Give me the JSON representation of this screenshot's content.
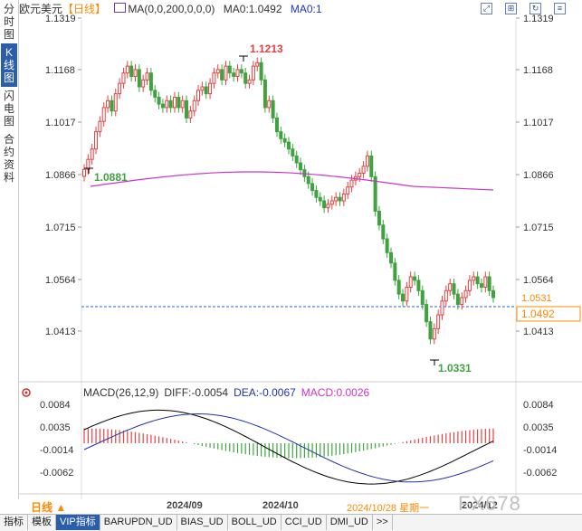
{
  "sidebar": {
    "items": [
      {
        "label": "分时图",
        "active": false
      },
      {
        "label": "K线图",
        "active": true
      },
      {
        "label": "闪电图",
        "active": false
      },
      {
        "label": "合约资料",
        "active": false
      }
    ]
  },
  "header": {
    "symbol": "欧元美元",
    "period": "【日线】",
    "ma_label": "MA(0,0,200,0,0,0)",
    "ma0_label": "MA0:1.0492",
    "ma0_right": "MA0:1"
  },
  "colors": {
    "up": "#e64040",
    "down": "#3fa33f",
    "ma": "#cc33cc",
    "macd_line": "#cc33cc",
    "dea_line": "#2233aa",
    "price_line": "#2266cc",
    "label_price_box": "#ff8800"
  },
  "price_axis": {
    "ticks": [
      "1.1319",
      "1.1168",
      "1.1017",
      "1.0866",
      "1.0715",
      "1.0564",
      "1.0413"
    ],
    "current_price": "1.0531",
    "ma_value": "1.0492"
  },
  "annotations": {
    "high": "1.1213",
    "low": "1.0331",
    "start": "1.0881"
  },
  "macd": {
    "label": "MACD(26,12,9)",
    "diff": "DIFF:-0.0054",
    "dea": "DEA:-0.0067",
    "macd": "MACD:0.0026",
    "ticks": [
      "0.0084",
      "0.0035",
      "-0.0014",
      "-0.0062"
    ]
  },
  "time_axis": {
    "period_button": "日线 ▲",
    "labels": [
      "2024/09",
      "2024/10",
      "2024/10/28 星期一",
      "2024/12"
    ]
  },
  "watermark": "FX678",
  "tabs": [
    "指标",
    "模板",
    "VIP指标",
    "BARUPDN_UD",
    "BIAS_UD",
    "BOLL_UD",
    "CCI_UD",
    "DMI_UD",
    ">>"
  ],
  "chart_data": {
    "type": "candlestick",
    "price_range": [
      1.0331,
      1.1319
    ],
    "highlights": {
      "high": 1.1213,
      "low": 1.0331,
      "last": 1.0531,
      "ma200": 1.0492
    },
    "macd_range": [
      -0.0062,
      0.0084
    ]
  }
}
